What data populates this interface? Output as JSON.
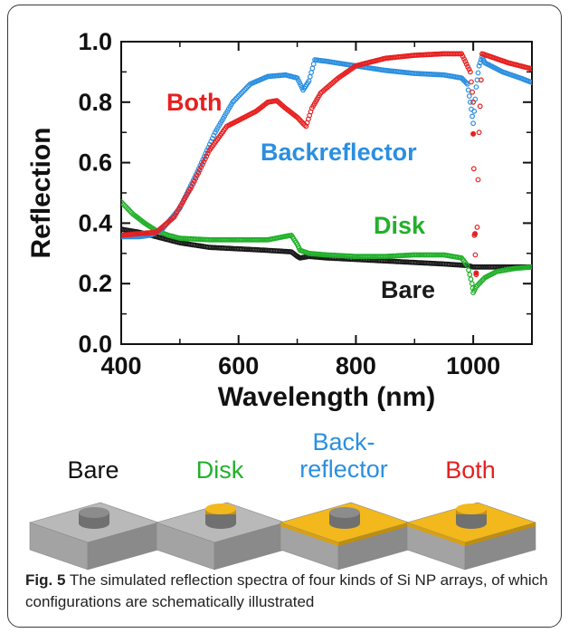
{
  "chart_data": {
    "type": "scatter",
    "xlabel": "Wavelength (nm)",
    "ylabel": "Reflection",
    "xlim": [
      400,
      1100
    ],
    "ylim": [
      0.0,
      1.0
    ],
    "x_ticks": [
      "400",
      "600",
      "800",
      "1000"
    ],
    "y_ticks": [
      "0.0",
      "0.2",
      "0.4",
      "0.6",
      "0.8",
      "1.0"
    ],
    "series": [
      {
        "name": "Bare",
        "color": "#1a1a1a",
        "points": [
          [
            400,
            0.38
          ],
          [
            430,
            0.37
          ],
          [
            450,
            0.36
          ],
          [
            470,
            0.35
          ],
          [
            500,
            0.335
          ],
          [
            550,
            0.32
          ],
          [
            600,
            0.315
          ],
          [
            650,
            0.31
          ],
          [
            690,
            0.305
          ],
          [
            700,
            0.29
          ],
          [
            705,
            0.285
          ],
          [
            720,
            0.29
          ],
          [
            750,
            0.285
          ],
          [
            800,
            0.28
          ],
          [
            850,
            0.275
          ],
          [
            900,
            0.27
          ],
          [
            950,
            0.265
          ],
          [
            990,
            0.26
          ],
          [
            1000,
            0.255
          ],
          [
            1050,
            0.255
          ],
          [
            1100,
            0.255
          ]
        ]
      },
      {
        "name": "Disk",
        "color": "#22b02a",
        "points": [
          [
            400,
            0.47
          ],
          [
            420,
            0.43
          ],
          [
            440,
            0.4
          ],
          [
            460,
            0.375
          ],
          [
            480,
            0.36
          ],
          [
            500,
            0.35
          ],
          [
            550,
            0.345
          ],
          [
            600,
            0.345
          ],
          [
            650,
            0.345
          ],
          [
            690,
            0.36
          ],
          [
            700,
            0.33
          ],
          [
            705,
            0.31
          ],
          [
            720,
            0.3
          ],
          [
            750,
            0.295
          ],
          [
            800,
            0.29
          ],
          [
            850,
            0.29
          ],
          [
            900,
            0.295
          ],
          [
            950,
            0.295
          ],
          [
            980,
            0.285
          ],
          [
            990,
            0.26
          ],
          [
            998,
            0.2
          ],
          [
            1000,
            0.17
          ],
          [
            1005,
            0.19
          ],
          [
            1020,
            0.22
          ],
          [
            1040,
            0.24
          ],
          [
            1070,
            0.25
          ],
          [
            1100,
            0.255
          ]
        ]
      },
      {
        "name": "Backreflector",
        "color": "#2b8fe0",
        "points": [
          [
            400,
            0.355
          ],
          [
            430,
            0.355
          ],
          [
            450,
            0.36
          ],
          [
            470,
            0.38
          ],
          [
            500,
            0.45
          ],
          [
            530,
            0.57
          ],
          [
            560,
            0.7
          ],
          [
            590,
            0.8
          ],
          [
            620,
            0.86
          ],
          [
            650,
            0.885
          ],
          [
            680,
            0.89
          ],
          [
            700,
            0.88
          ],
          [
            710,
            0.84
          ],
          [
            720,
            0.87
          ],
          [
            730,
            0.94
          ],
          [
            750,
            0.935
          ],
          [
            800,
            0.92
          ],
          [
            850,
            0.905
          ],
          [
            900,
            0.895
          ],
          [
            950,
            0.89
          ],
          [
            980,
            0.88
          ],
          [
            990,
            0.86
          ],
          [
            995,
            0.8
          ],
          [
            1000,
            0.73
          ],
          [
            1005,
            0.85
          ],
          [
            1010,
            0.92
          ],
          [
            1015,
            0.95
          ],
          [
            1020,
            0.93
          ],
          [
            1050,
            0.9
          ],
          [
            1080,
            0.88
          ],
          [
            1100,
            0.865
          ]
        ]
      },
      {
        "name": "Both",
        "color": "#e62020",
        "points": [
          [
            400,
            0.36
          ],
          [
            430,
            0.365
          ],
          [
            460,
            0.37
          ],
          [
            490,
            0.42
          ],
          [
            520,
            0.52
          ],
          [
            550,
            0.64
          ],
          [
            580,
            0.72
          ],
          [
            610,
            0.75
          ],
          [
            630,
            0.77
          ],
          [
            650,
            0.8
          ],
          [
            665,
            0.805
          ],
          [
            680,
            0.78
          ],
          [
            700,
            0.75
          ],
          [
            715,
            0.72
          ],
          [
            725,
            0.78
          ],
          [
            740,
            0.83
          ],
          [
            770,
            0.88
          ],
          [
            800,
            0.92
          ],
          [
            850,
            0.945
          ],
          [
            900,
            0.955
          ],
          [
            950,
            0.96
          ],
          [
            980,
            0.96
          ],
          [
            995,
            0.9
          ],
          [
            1000,
            0.8
          ],
          [
            1002,
            0.36
          ],
          [
            1005,
            0.23
          ],
          [
            1010,
            0.7
          ],
          [
            1015,
            0.96
          ],
          [
            1030,
            0.95
          ],
          [
            1060,
            0.93
          ],
          [
            1100,
            0.91
          ]
        ]
      }
    ],
    "annotations": [
      "Both",
      "Backreflector",
      "Disk",
      "Bare"
    ]
  },
  "schematic": {
    "labels": [
      "Bare",
      "Disk",
      "Back-\nreflector",
      "Both"
    ],
    "label_lines": [
      [
        "Bare"
      ],
      [
        "Disk"
      ],
      [
        "Back-",
        "reflector"
      ],
      [
        "Both"
      ]
    ],
    "label_colors": [
      "#111111",
      "#22b02a",
      "#2b8fe0",
      "#e62020"
    ],
    "substrate_color": "#a8a8a8",
    "gold_color": "#f2b81c"
  },
  "caption": {
    "bold": "Fig. 5",
    "text": " The simulated reflection spectra of four kinds of Si NP arrays, of which configurations are schematically illustrated"
  }
}
